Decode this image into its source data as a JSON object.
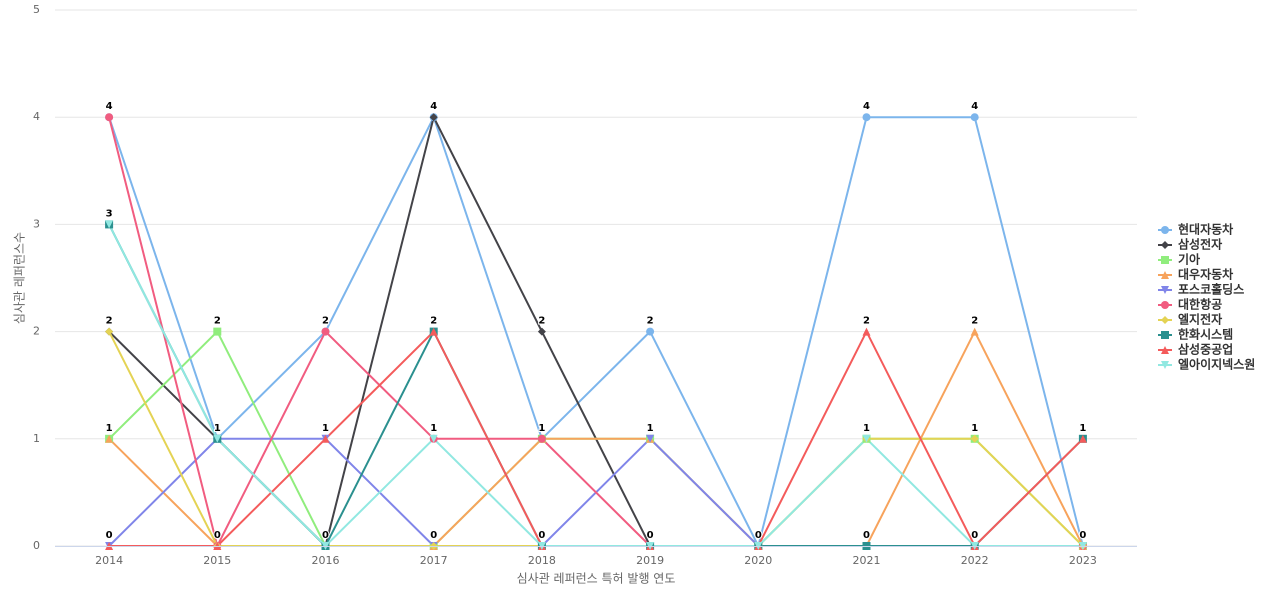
{
  "chart_data": {
    "type": "line",
    "x_label": "심사관 레퍼런스 특허 발행 연도",
    "y_label": "심사관 레퍼런스수",
    "categories": [
      "2014",
      "2015",
      "2016",
      "2017",
      "2018",
      "2019",
      "2020",
      "2021",
      "2022",
      "2023"
    ],
    "ylim": [
      0,
      5
    ],
    "yticks": [
      0,
      1,
      2,
      3,
      4,
      5
    ],
    "grid": true,
    "series": [
      {
        "name": "현대자동차",
        "color": "#7cb5ec",
        "marker": "circle",
        "values": [
          4,
          1,
          2,
          4,
          1,
          2,
          0,
          4,
          4,
          0
        ]
      },
      {
        "name": "삼성전자",
        "color": "#434348",
        "marker": "diamond",
        "values": [
          2,
          1,
          0,
          4,
          2,
          0,
          0,
          0,
          0,
          0
        ]
      },
      {
        "name": "기아",
        "color": "#90ed7d",
        "marker": "square",
        "values": [
          1,
          2,
          0,
          0,
          1,
          1,
          0,
          1,
          1,
          0
        ]
      },
      {
        "name": "대우자동차",
        "color": "#f7a35c",
        "marker": "triangle",
        "values": [
          1,
          0,
          0,
          0,
          1,
          1,
          0,
          0,
          2,
          0
        ]
      },
      {
        "name": "포스코홀딩스",
        "color": "#8085e9",
        "marker": "triangle-down",
        "values": [
          0,
          1,
          1,
          0,
          0,
          1,
          0,
          0,
          0,
          0
        ]
      },
      {
        "name": "대한항공",
        "color": "#f15c80",
        "marker": "circle",
        "values": [
          4,
          0,
          2,
          1,
          1,
          0,
          0,
          0,
          0,
          0
        ]
      },
      {
        "name": "엘지전자",
        "color": "#e4d354",
        "marker": "diamond",
        "values": [
          2,
          0,
          0,
          0,
          0,
          0,
          0,
          1,
          1,
          0
        ]
      },
      {
        "name": "한화시스템",
        "color": "#2b908f",
        "marker": "square",
        "values": [
          3,
          1,
          0,
          2,
          0,
          0,
          0,
          0,
          0,
          1
        ]
      },
      {
        "name": "삼성중공업",
        "color": "#f45b5b",
        "marker": "triangle",
        "values": [
          0,
          0,
          1,
          2,
          0,
          0,
          0,
          2,
          0,
          1
        ]
      },
      {
        "name": "엘아이지넥스원",
        "color": "#91e8e1",
        "marker": "triangle-down",
        "values": [
          3,
          1,
          0,
          1,
          0,
          0,
          0,
          1,
          0,
          0
        ]
      }
    ]
  }
}
